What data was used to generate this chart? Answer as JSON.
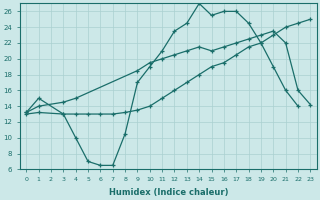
{
  "xlabel": "Humidex (Indice chaleur)",
  "xlim": [
    -0.5,
    23.5
  ],
  "ylim": [
    6,
    27
  ],
  "yticks": [
    6,
    8,
    10,
    12,
    14,
    16,
    18,
    20,
    22,
    24,
    26
  ],
  "xticks": [
    0,
    1,
    2,
    3,
    4,
    5,
    6,
    7,
    8,
    9,
    10,
    11,
    12,
    13,
    14,
    15,
    16,
    17,
    18,
    19,
    20,
    21,
    22,
    23
  ],
  "bg_color": "#cce8e8",
  "line_color": "#1a6e6a",
  "grid_color": "#aad0d0",
  "line1_x": [
    0,
    1,
    3,
    4,
    5,
    6,
    7,
    8,
    9,
    10,
    11,
    12,
    13,
    14,
    15,
    16,
    17,
    18,
    19,
    20,
    21,
    22
  ],
  "line1_y": [
    13.2,
    15.0,
    13.0,
    10.0,
    7.0,
    6.5,
    6.5,
    10.5,
    17.0,
    19.0,
    21.0,
    23.5,
    24.5,
    27.0,
    25.5,
    26.0,
    26.0,
    24.5,
    22.0,
    19.0,
    16.0,
    14.0
  ],
  "line2_x": [
    0,
    1,
    3,
    4,
    9,
    10,
    11,
    12,
    13,
    14,
    15,
    16,
    17,
    18,
    19,
    20,
    21,
    22,
    23
  ],
  "line2_y": [
    13.2,
    14.0,
    14.5,
    15.0,
    18.5,
    19.5,
    20.0,
    20.5,
    21.0,
    21.5,
    21.0,
    21.5,
    22.0,
    22.5,
    23.0,
    23.5,
    22.0,
    16.0,
    14.2
  ],
  "line3_x": [
    0,
    1,
    3,
    4,
    5,
    6,
    7,
    8,
    9,
    10,
    11,
    12,
    13,
    14,
    15,
    16,
    17,
    18,
    19,
    20,
    21,
    22,
    23
  ],
  "line3_y": [
    13.0,
    13.2,
    13.0,
    13.0,
    13.0,
    13.0,
    13.0,
    13.2,
    13.5,
    14.0,
    15.0,
    16.0,
    17.0,
    18.0,
    19.0,
    19.5,
    20.5,
    21.5,
    22.0,
    23.0,
    24.0,
    24.5,
    25.0
  ]
}
